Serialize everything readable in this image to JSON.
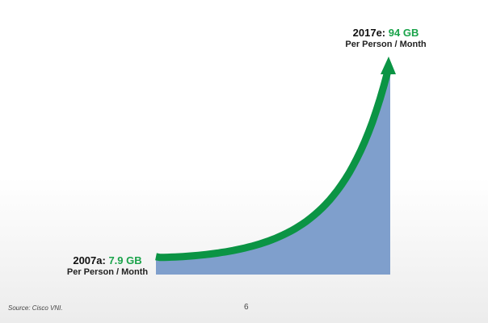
{
  "chart_data": {
    "type": "area",
    "x": [
      "2007a",
      "2017e"
    ],
    "values": [
      7.9,
      94
    ],
    "unit": "GB",
    "points": [
      {
        "label": "2007a:",
        "value_text": "7.9 GB",
        "sub": "Per Person / Month"
      },
      {
        "label": "2017e:",
        "value_text": "94 GB",
        "sub": "Per Person / Month"
      }
    ],
    "colors": {
      "area": "#7f9fcc",
      "line": "#0b9444",
      "highlight": "#1aa34a"
    },
    "growth": "exponential"
  },
  "footer": {
    "source": "Source: Cisco VNI.",
    "page": "6"
  }
}
